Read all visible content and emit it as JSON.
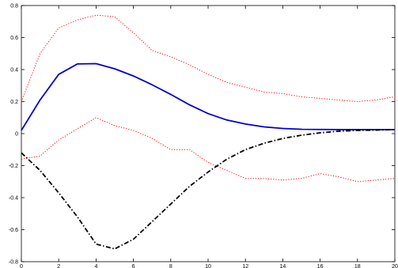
{
  "chart_data": {
    "type": "line",
    "title": "",
    "xlabel": "",
    "ylabel": "",
    "xlim": [
      0,
      20
    ],
    "ylim": [
      -0.8,
      0.8
    ],
    "x_ticks": [
      "0",
      "2",
      "4",
      "6",
      "8",
      "10",
      "12",
      "14",
      "16",
      "18",
      "20"
    ],
    "y_ticks": [
      "-0.8",
      "-0.6",
      "-0.4",
      "-0.2",
      "0",
      "0.2",
      "0.4",
      "0.6",
      "0.8"
    ],
    "grid": false,
    "legend": "none",
    "x": [
      0,
      1,
      2,
      3,
      4,
      5,
      6,
      7,
      8,
      9,
      10,
      11,
      12,
      13,
      14,
      15,
      16,
      17,
      18,
      19,
      20
    ],
    "series": [
      {
        "color": "#0000cc",
        "style": "solid",
        "values": [
          0.02,
          0.21,
          0.37,
          0.435,
          0.437,
          0.405,
          0.36,
          0.305,
          0.245,
          0.18,
          0.125,
          0.085,
          0.06,
          0.042,
          0.032,
          0.027,
          0.026,
          0.025,
          0.025,
          0.025,
          0.025
        ]
      },
      {
        "color": "#ff0000",
        "style": "dotted",
        "values": [
          0.2,
          0.5,
          0.66,
          0.71,
          0.74,
          0.73,
          0.63,
          0.52,
          0.48,
          0.43,
          0.37,
          0.32,
          0.29,
          0.26,
          0.25,
          0.23,
          0.22,
          0.21,
          0.2,
          0.21,
          0.23
        ]
      },
      {
        "color": "#ff0000",
        "style": "dotted",
        "values": [
          -0.16,
          -0.14,
          -0.04,
          0.03,
          0.1,
          0.05,
          0.02,
          -0.03,
          -0.1,
          -0.1,
          -0.18,
          -0.23,
          -0.28,
          -0.28,
          -0.29,
          -0.28,
          -0.25,
          -0.27,
          -0.3,
          -0.29,
          -0.28
        ]
      },
      {
        "color": "#000000",
        "style": "dashdot",
        "values": [
          -0.12,
          -0.23,
          -0.37,
          -0.52,
          -0.69,
          -0.72,
          -0.66,
          -0.55,
          -0.44,
          -0.33,
          -0.24,
          -0.16,
          -0.1,
          -0.06,
          -0.03,
          -0.01,
          0.005,
          0.015,
          0.02,
          0.022,
          0.025
        ]
      }
    ]
  }
}
